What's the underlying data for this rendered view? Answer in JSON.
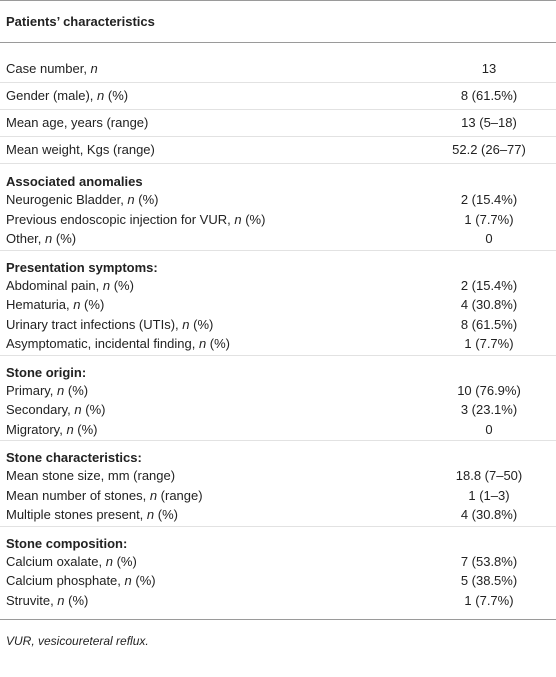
{
  "table": {
    "title": "Patients’ characteristics",
    "rows": [
      {
        "label": [
          "Case number, ",
          "n"
        ],
        "value": "13"
      },
      {
        "label": [
          "Gender (male), ",
          "n",
          " (%)"
        ],
        "value": "8 (61.5%)"
      },
      {
        "label": [
          "Mean age, years (range)"
        ],
        "value": "13 (5–18)"
      },
      {
        "label": [
          "Mean weight, Kgs (range)"
        ],
        "value": "52.2 (26–77)"
      }
    ],
    "sections": [
      {
        "heading": "Associated anomalies",
        "rows": [
          {
            "label": [
              "Neurogenic Bladder, ",
              "n",
              " (%)"
            ],
            "value": "2 (15.4%)"
          },
          {
            "label": [
              "Previous endoscopic injection for VUR, ",
              "n",
              " (%)"
            ],
            "value": "1 (7.7%)"
          },
          {
            "label": [
              "Other, ",
              "n",
              " (%)"
            ],
            "value": "0"
          }
        ]
      },
      {
        "heading": "Presentation symptoms:",
        "rows": [
          {
            "label": [
              "Abdominal pain, ",
              "n",
              " (%)"
            ],
            "value": "2 (15.4%)"
          },
          {
            "label": [
              "Hematuria, ",
              "n",
              " (%)"
            ],
            "value": "4 (30.8%)"
          },
          {
            "label": [
              "Urinary tract infections (UTIs), ",
              "n",
              " (%)"
            ],
            "value": "8 (61.5%)"
          },
          {
            "label": [
              "Asymptomatic, incidental finding, ",
              "n",
              " (%)"
            ],
            "value": "1 (7.7%)"
          }
        ]
      },
      {
        "heading": "Stone origin:",
        "rows": [
          {
            "label": [
              "Primary, ",
              "n",
              " (%)"
            ],
            "value": "10 (76.9%)"
          },
          {
            "label": [
              "Secondary, ",
              "n",
              " (%)"
            ],
            "value": "3 (23.1%)"
          },
          {
            "label": [
              "Migratory, ",
              "n",
              " (%)"
            ],
            "value": "0"
          }
        ]
      },
      {
        "heading": "Stone characteristics:",
        "rows": [
          {
            "label": [
              "Mean stone size, mm (range)"
            ],
            "value": "18.8 (7–50)"
          },
          {
            "label": [
              "Mean number of stones, ",
              "n",
              " (range)"
            ],
            "value": "1 (1–3)"
          },
          {
            "label": [
              "Multiple stones present, ",
              "n",
              " (%)"
            ],
            "value": "4 (30.8%)"
          }
        ]
      },
      {
        "heading": "Stone composition:",
        "rows": [
          {
            "label": [
              "Calcium oxalate, ",
              "n",
              " (%)"
            ],
            "value": "7 (53.8%)"
          },
          {
            "label": [
              "Calcium phosphate, ",
              "n",
              " (%)"
            ],
            "value": "5 (38.5%)"
          },
          {
            "label": [
              "Struvite, ",
              "n",
              " (%)"
            ],
            "value": "1 (7.7%)"
          }
        ]
      }
    ],
    "footnote": "VUR, vesicoureteral reflux."
  }
}
